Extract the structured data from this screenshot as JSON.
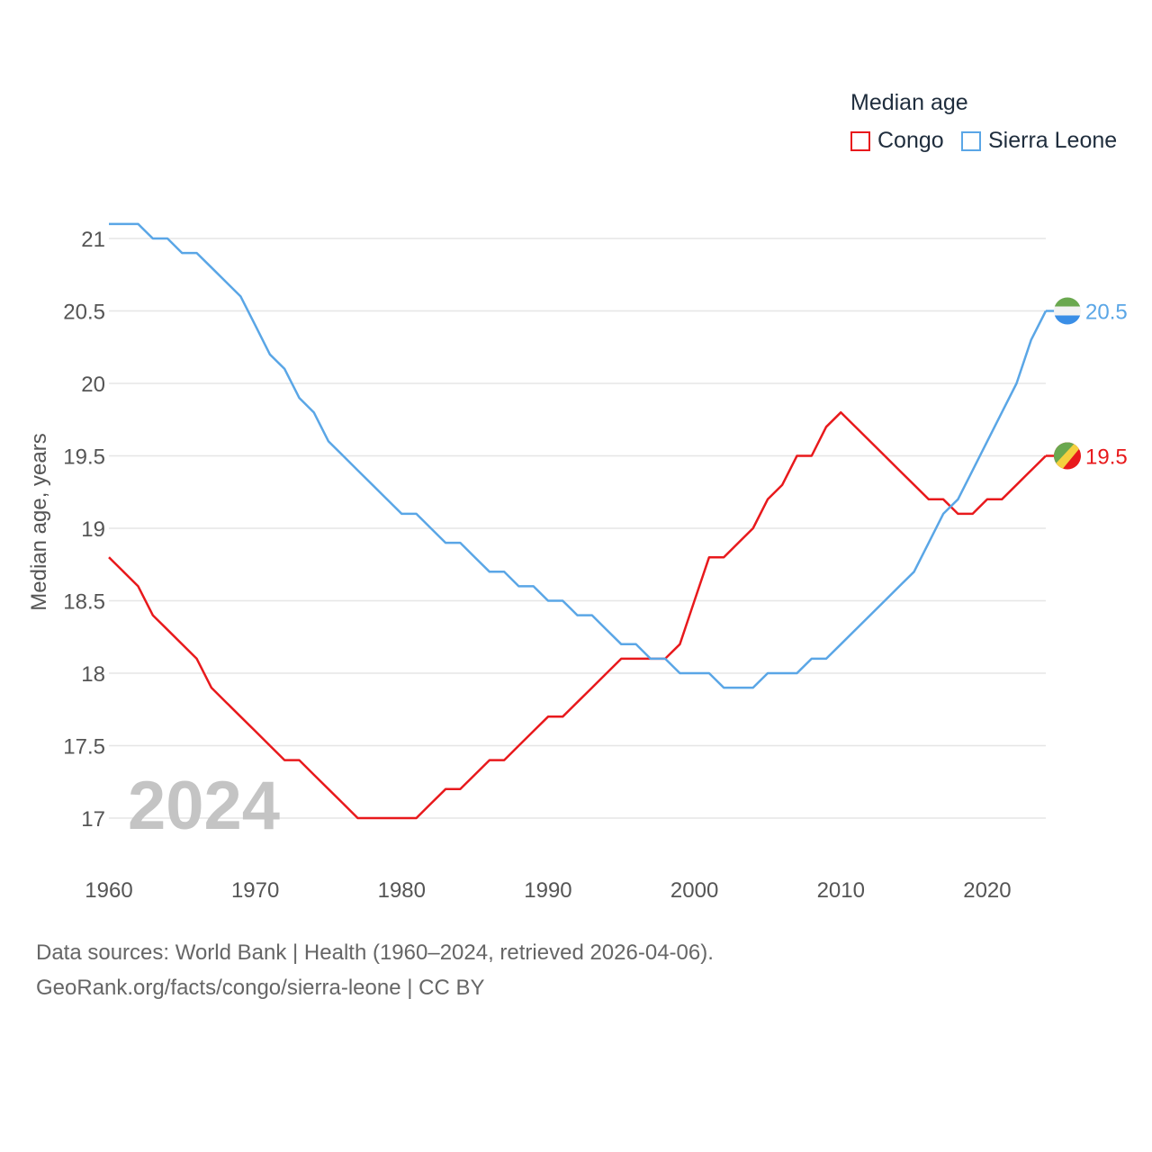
{
  "legend": {
    "title": "Median age",
    "items": [
      {
        "label": "Congo",
        "color": "#e8191c"
      },
      {
        "label": "Sierra Leone",
        "color": "#5aa6e6"
      }
    ]
  },
  "footer": {
    "line1": "Data sources: World Bank | Health (1960–2024, retrieved 2026-04-06).",
    "line2": "GeoRank.org/facts/congo/sierra-leone | CC BY"
  },
  "chart_data": {
    "type": "line",
    "title": "Median age",
    "xlabel": "",
    "ylabel": "Median age, years",
    "year_watermark": "2024",
    "xlim": [
      1960,
      2024
    ],
    "ylim": [
      16.5,
      21.3
    ],
    "xticks": [
      "1960",
      "1970",
      "1980",
      "1990",
      "2000",
      "2010",
      "2020"
    ],
    "yticks": [
      "17",
      "17.5",
      "18",
      "18.5",
      "19",
      "19.5",
      "20",
      "20.5",
      "21"
    ],
    "grid": true,
    "legend_position": "top-right",
    "x": [
      1960,
      1961,
      1962,
      1963,
      1964,
      1965,
      1966,
      1967,
      1968,
      1969,
      1970,
      1971,
      1972,
      1973,
      1974,
      1975,
      1976,
      1977,
      1978,
      1979,
      1980,
      1981,
      1982,
      1983,
      1984,
      1985,
      1986,
      1987,
      1988,
      1989,
      1990,
      1991,
      1992,
      1993,
      1994,
      1995,
      1996,
      1997,
      1998,
      1999,
      2000,
      2001,
      2002,
      2003,
      2004,
      2005,
      2006,
      2007,
      2008,
      2009,
      2010,
      2011,
      2012,
      2013,
      2014,
      2015,
      2016,
      2017,
      2018,
      2019,
      2020,
      2021,
      2022,
      2023,
      2024
    ],
    "series": [
      {
        "name": "Congo",
        "color": "#e8191c",
        "end_label": "19.5",
        "values": [
          18.8,
          18.7,
          18.6,
          18.4,
          18.3,
          18.2,
          18.1,
          17.9,
          17.8,
          17.7,
          17.6,
          17.5,
          17.4,
          17.4,
          17.3,
          17.2,
          17.1,
          17.0,
          17.0,
          17.0,
          17.0,
          17.0,
          17.1,
          17.2,
          17.2,
          17.3,
          17.4,
          17.4,
          17.5,
          17.6,
          17.7,
          17.7,
          17.8,
          17.9,
          18.0,
          18.1,
          18.1,
          18.1,
          18.1,
          18.2,
          18.5,
          18.8,
          18.8,
          18.9,
          19.0,
          19.2,
          19.3,
          19.5,
          19.5,
          19.7,
          19.8,
          19.7,
          19.6,
          19.5,
          19.4,
          19.3,
          19.2,
          19.2,
          19.1,
          19.1,
          19.2,
          19.2,
          19.3,
          19.4,
          19.5
        ]
      },
      {
        "name": "Sierra Leone",
        "color": "#5aa6e6",
        "end_label": "20.5",
        "values": [
          21.1,
          21.1,
          21.1,
          21.0,
          21.0,
          20.9,
          20.9,
          20.8,
          20.7,
          20.6,
          20.4,
          20.2,
          20.1,
          19.9,
          19.8,
          19.6,
          19.5,
          19.4,
          19.3,
          19.2,
          19.1,
          19.1,
          19.0,
          18.9,
          18.9,
          18.8,
          18.7,
          18.7,
          18.6,
          18.6,
          18.5,
          18.5,
          18.4,
          18.4,
          18.3,
          18.2,
          18.2,
          18.1,
          18.1,
          18.0,
          18.0,
          18.0,
          17.9,
          17.9,
          17.9,
          18.0,
          18.0,
          18.0,
          18.1,
          18.1,
          18.2,
          18.3,
          18.4,
          18.5,
          18.6,
          18.7,
          18.9,
          19.1,
          19.2,
          19.4,
          19.6,
          19.8,
          20.0,
          20.3,
          20.5
        ]
      }
    ]
  }
}
